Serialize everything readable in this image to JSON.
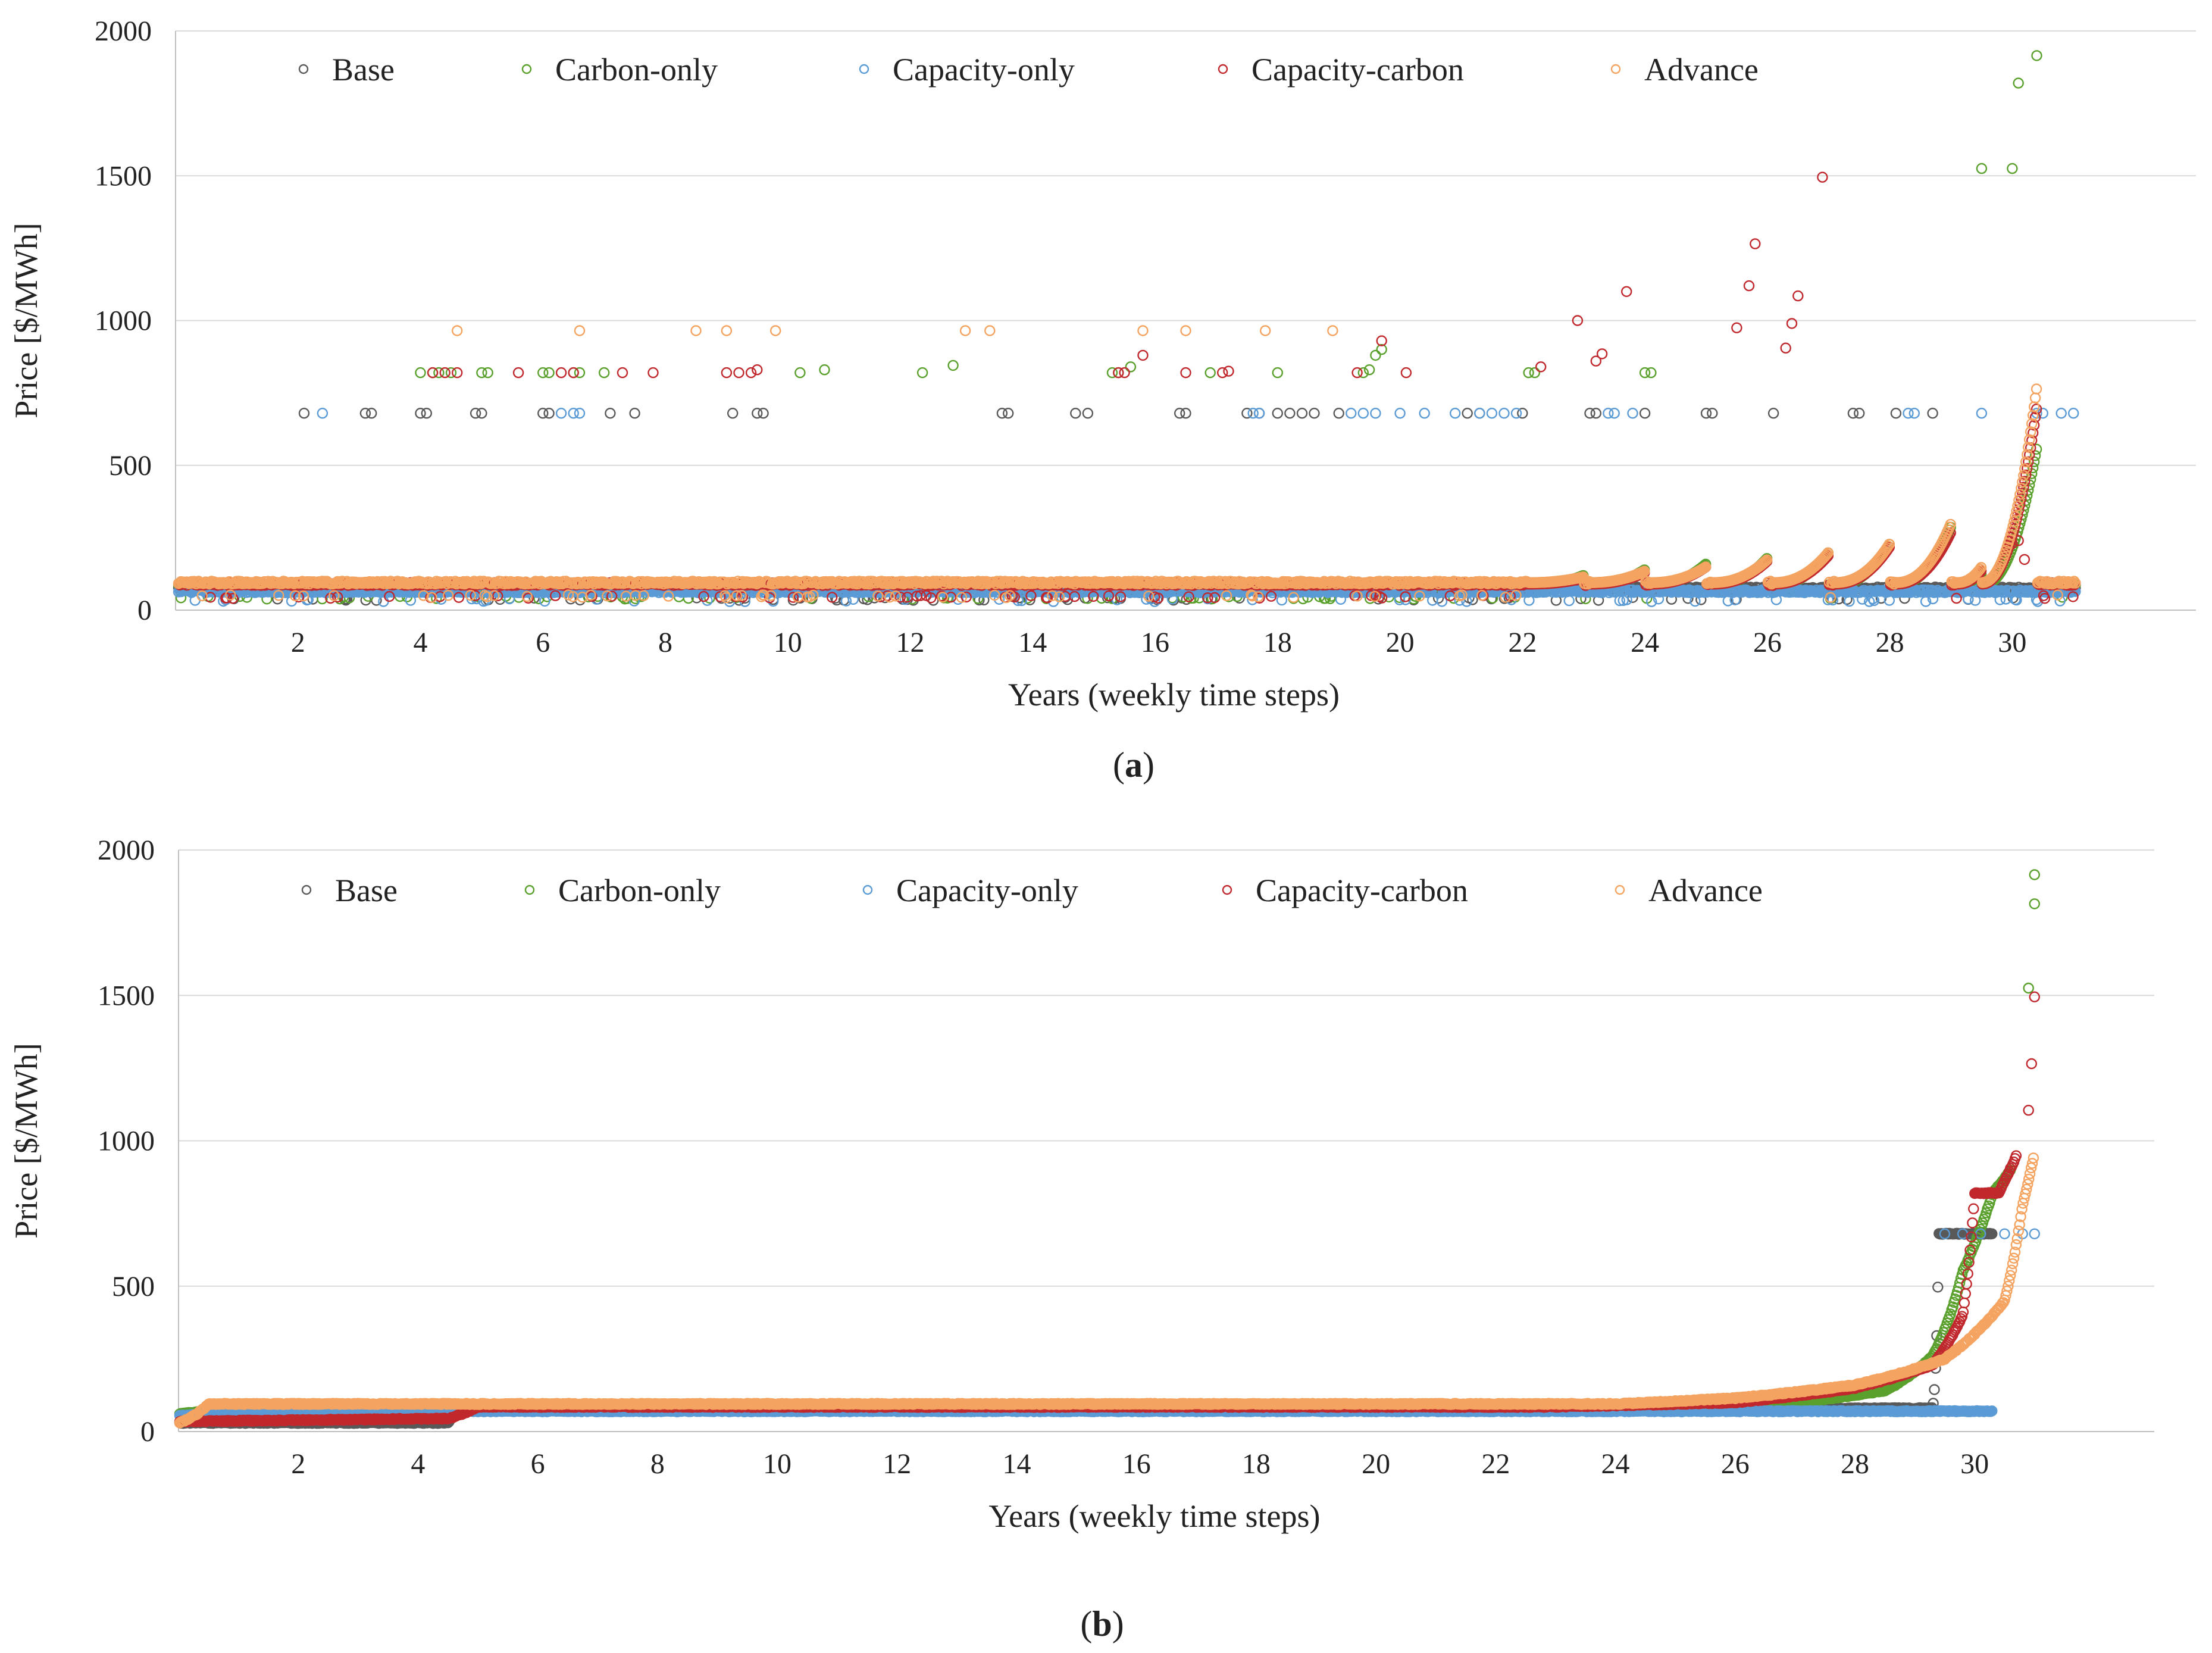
{
  "colors": {
    "Base": "#595959",
    "Carbon-only": "#5aa02c",
    "Capacity-only": "#5b9bd5",
    "Capacity-carbon": "#c0282d",
    "Advance": "#f4a460",
    "grid": "#d9d9d9",
    "axis": "#bfbfbf"
  },
  "chart_data": [
    {
      "id": "a",
      "type": "scatter",
      "caption": {
        "open": "(",
        "letter": "a",
        "close": ")"
      },
      "xlabel": "Years (weekly time steps)",
      "ylabel": "Price [$/MWh]",
      "xlim": [
        0,
        33
      ],
      "ylim": [
        0,
        2000
      ],
      "xticks": [
        "2",
        "4",
        "6",
        "8",
        "10",
        "12",
        "14",
        "16",
        "18",
        "20",
        "22",
        "24",
        "26",
        "28",
        "30"
      ],
      "yticks": [
        "0",
        "500",
        "1000",
        "1500",
        "2000"
      ],
      "legend": [
        "Base",
        "Carbon-only",
        "Capacity-only",
        "Capacity-carbon",
        "Advance"
      ],
      "series": [
        {
          "name": "Base",
          "baseline": 75,
          "spikes": [
            [
              2.1,
              680
            ],
            [
              3.1,
              680
            ],
            [
              3.2,
              680
            ],
            [
              4,
              680
            ],
            [
              4.1,
              680
            ],
            [
              4.9,
              680
            ],
            [
              5,
              680
            ],
            [
              6,
              680
            ],
            [
              6.1,
              680
            ],
            [
              7.1,
              680
            ],
            [
              7.5,
              680
            ],
            [
              9.1,
              680
            ],
            [
              9.5,
              680
            ],
            [
              9.6,
              680
            ],
            [
              13.5,
              680
            ],
            [
              13.6,
              680
            ],
            [
              14.7,
              680
            ],
            [
              14.9,
              680
            ],
            [
              16.4,
              680
            ],
            [
              16.5,
              680
            ],
            [
              17.5,
              680
            ],
            [
              17.7,
              680
            ],
            [
              18,
              680
            ],
            [
              18.2,
              680
            ],
            [
              18.4,
              680
            ],
            [
              18.6,
              680
            ],
            [
              19,
              680
            ],
            [
              21.1,
              680
            ],
            [
              21.3,
              680
            ],
            [
              22,
              680
            ],
            [
              23.1,
              680
            ],
            [
              23.2,
              680
            ],
            [
              24,
              680
            ],
            [
              25,
              680
            ],
            [
              25.1,
              680
            ],
            [
              26.1,
              680
            ],
            [
              27.4,
              680
            ],
            [
              27.5,
              680
            ],
            [
              28.1,
              680
            ],
            [
              28.7,
              680
            ]
          ]
        },
        {
          "name": "Carbon-only",
          "baseline": 85,
          "ramps": [
            [
              23.0,
              120
            ],
            [
              24.0,
              140
            ],
            [
              25.0,
              160
            ],
            [
              26.0,
              180
            ],
            [
              27.0,
              200
            ],
            [
              28.0,
              230
            ],
            [
              29.0,
              290
            ],
            [
              30.0,
              330
            ],
            [
              30.4,
              560
            ]
          ],
          "spikes": [
            [
              4,
              820
            ],
            [
              4.2,
              820
            ],
            [
              4.3,
              820
            ],
            [
              4.5,
              820
            ],
            [
              5,
              820
            ],
            [
              5.1,
              820
            ],
            [
              6,
              820
            ],
            [
              6.1,
              820
            ],
            [
              6.5,
              820
            ],
            [
              6.6,
              820
            ],
            [
              7,
              820
            ],
            [
              10.2,
              820
            ],
            [
              10.6,
              830
            ],
            [
              12.2,
              820
            ],
            [
              12.7,
              845
            ],
            [
              15.3,
              820
            ],
            [
              15.4,
              820
            ],
            [
              15.6,
              840
            ],
            [
              16.9,
              820
            ],
            [
              18,
              820
            ],
            [
              19.4,
              820
            ],
            [
              19.5,
              830
            ],
            [
              19.6,
              880
            ],
            [
              19.7,
              900
            ],
            [
              22.1,
              820
            ],
            [
              22.2,
              820
            ],
            [
              24.0,
              820
            ],
            [
              24.1,
              820
            ],
            [
              29.5,
              1525
            ],
            [
              30.0,
              1525
            ],
            [
              30.1,
              1820
            ],
            [
              30.4,
              1915
            ]
          ]
        },
        {
          "name": "Capacity-only",
          "baseline": 65,
          "spikes": [
            [
              2.4,
              680
            ],
            [
              6.3,
              680
            ],
            [
              6.5,
              680
            ],
            [
              6.6,
              680
            ],
            [
              17.6,
              680
            ],
            [
              17.7,
              680
            ],
            [
              19.2,
              680
            ],
            [
              19.4,
              680
            ],
            [
              19.6,
              680
            ],
            [
              20,
              680
            ],
            [
              20.4,
              680
            ],
            [
              20.9,
              680
            ],
            [
              21.3,
              680
            ],
            [
              21.5,
              680
            ],
            [
              21.7,
              680
            ],
            [
              21.9,
              680
            ],
            [
              23.4,
              680
            ],
            [
              23.5,
              680
            ],
            [
              23.8,
              680
            ],
            [
              28.3,
              680
            ],
            [
              28.4,
              680
            ],
            [
              29.5,
              680
            ],
            [
              30.4,
              680
            ],
            [
              30.5,
              680
            ],
            [
              30.8,
              680
            ],
            [
              31.0,
              680
            ]
          ]
        },
        {
          "name": "Capacity-carbon",
          "baseline": 90,
          "ramps": [
            [
              23.0,
              110
            ],
            [
              24.0,
              130
            ],
            [
              25.0,
              150
            ],
            [
              26.0,
              170
            ],
            [
              27.0,
              190
            ],
            [
              28.0,
              220
            ],
            [
              29.0,
              270
            ],
            [
              30.0,
              370
            ],
            [
              30.4,
              700
            ]
          ],
          "spikes": [
            [
              4.2,
              820
            ],
            [
              4.4,
              820
            ],
            [
              4.6,
              820
            ],
            [
              5.6,
              820
            ],
            [
              6.3,
              820
            ],
            [
              6.5,
              820
            ],
            [
              7.3,
              820
            ],
            [
              7.8,
              820
            ],
            [
              9.0,
              820
            ],
            [
              9.2,
              820
            ],
            [
              9.4,
              820
            ],
            [
              9.5,
              830
            ],
            [
              15.4,
              820
            ],
            [
              15.5,
              820
            ],
            [
              15.8,
              880
            ],
            [
              16.5,
              820
            ],
            [
              17.1,
              820
            ],
            [
              17.2,
              825
            ],
            [
              19.3,
              820
            ],
            [
              19.7,
              930
            ],
            [
              20.1,
              820
            ],
            [
              22.3,
              840
            ],
            [
              22.9,
              1000
            ],
            [
              23.2,
              860
            ],
            [
              23.3,
              885
            ],
            [
              23.7,
              1100
            ],
            [
              25.5,
              975
            ],
            [
              25.7,
              1120
            ],
            [
              25.8,
              1265
            ],
            [
              26.3,
              905
            ],
            [
              26.4,
              990
            ],
            [
              26.5,
              1085
            ],
            [
              26.9,
              1495
            ],
            [
              30.0,
              230
            ],
            [
              30.1,
              240
            ],
            [
              30.2,
              175
            ]
          ]
        },
        {
          "name": "Advance",
          "baseline": 95,
          "ramps": [
            [
              23.0,
              115
            ],
            [
              24.0,
              135
            ],
            [
              25.0,
              150
            ],
            [
              26.0,
              175
            ],
            [
              27.0,
              200
            ],
            [
              28.0,
              230
            ],
            [
              29.0,
              300
            ],
            [
              30.0,
              420
            ],
            [
              30.4,
              770
            ]
          ],
          "spikes": [
            [
              4.6,
              965
            ],
            [
              6.6,
              965
            ],
            [
              8.5,
              965
            ],
            [
              9.0,
              965
            ],
            [
              9.8,
              965
            ],
            [
              12.9,
              965
            ],
            [
              13.3,
              965
            ],
            [
              15.8,
              965
            ],
            [
              16.5,
              965
            ],
            [
              17.8,
              965
            ],
            [
              18.9,
              965
            ]
          ]
        }
      ]
    },
    {
      "id": "b",
      "type": "scatter",
      "caption": {
        "open": "(",
        "letter": "b",
        "close": ")"
      },
      "xlabel": "Years (weekly time steps)",
      "ylabel": "Price [$/MWh]",
      "xlim": [
        0,
        33
      ],
      "ylim": [
        0,
        2000
      ],
      "xticks": [
        "2",
        "4",
        "6",
        "8",
        "10",
        "12",
        "14",
        "16",
        "18",
        "20",
        "22",
        "24",
        "26",
        "28",
        "30"
      ],
      "yticks": [
        "0",
        "500",
        "1000",
        "1500",
        "2000"
      ],
      "legend": [
        "Base",
        "Carbon-only",
        "Capacity-only",
        "Capacity-carbon",
        "Advance"
      ],
      "series": [
        {
          "name": "Base",
          "curve": [
            [
              0,
              30
            ],
            [
              4.5,
              30
            ],
            [
              4.6,
              75
            ],
            [
              29.3,
              80
            ],
            [
              29.4,
              680
            ],
            [
              30.3,
              680
            ]
          ]
        },
        {
          "name": "Carbon-only",
          "curve": [
            [
              0,
              60
            ],
            [
              0.8,
              80
            ],
            [
              25,
              85
            ],
            [
              27,
              100
            ],
            [
              28.5,
              140
            ],
            [
              29.3,
              260
            ],
            [
              29.8,
              550
            ],
            [
              30.3,
              820
            ],
            [
              30.6,
              900
            ]
          ],
          "spikes": [
            [
              30.9,
              1525
            ],
            [
              31.0,
              1815
            ],
            [
              31.0,
              1915
            ]
          ]
        },
        {
          "name": "Capacity-only",
          "curve": [
            [
              0,
              55
            ],
            [
              1.5,
              70
            ],
            [
              30.3,
              70
            ]
          ],
          "spikes": [
            [
              29.5,
              680
            ],
            [
              29.8,
              680
            ],
            [
              30.1,
              680
            ],
            [
              30.5,
              680
            ],
            [
              30.8,
              680
            ],
            [
              31.0,
              680
            ]
          ]
        },
        {
          "name": "Capacity-carbon",
          "curve": [
            [
              0,
              35
            ],
            [
              4.5,
              45
            ],
            [
              5,
              85
            ],
            [
              23,
              85
            ],
            [
              26,
              100
            ],
            [
              28,
              150
            ],
            [
              29.3,
              230
            ],
            [
              29.8,
              400
            ],
            [
              30.0,
              820
            ],
            [
              30.4,
              820
            ],
            [
              30.7,
              950
            ]
          ],
          "spikes": [
            [
              30.9,
              1105
            ],
            [
              30.95,
              1265
            ],
            [
              31.0,
              1495
            ]
          ]
        },
        {
          "name": "Advance",
          "curve": [
            [
              0,
              30
            ],
            [
              0.5,
              95
            ],
            [
              24,
              95
            ],
            [
              26,
              115
            ],
            [
              28,
              160
            ],
            [
              29.5,
              250
            ],
            [
              30.5,
              450
            ],
            [
              30.8,
              780
            ],
            [
              31.0,
              960
            ]
          ]
        }
      ]
    }
  ]
}
